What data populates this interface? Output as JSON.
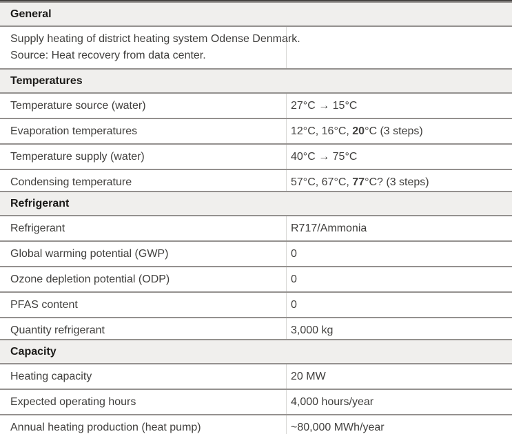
{
  "colors": {
    "background": "#ffffff",
    "top_border": "#454240",
    "border": "#94918f",
    "col_border": "#d9d8d6",
    "header_bg": "#f0efed",
    "header_text": "#1b1a18",
    "text": "#403f3d"
  },
  "table": {
    "sections": [
      {
        "title": "General",
        "rows": [
          {
            "type": "text",
            "lines": [
              "Supply heating of district heating system Odense Denmark.",
              "Source: Heat recovery from data center."
            ]
          }
        ]
      },
      {
        "title": "Temperatures",
        "rows": [
          {
            "type": "pair",
            "label": "Temperature source (water)",
            "value": [
              {
                "text": "27°C → 15°C",
                "bold": false
              }
            ]
          },
          {
            "type": "pair",
            "label": "Evaporation temperatures",
            "value": [
              {
                "text": "12°C, 16°C, ",
                "bold": false
              },
              {
                "text": "20",
                "bold": true
              },
              {
                "text": "°C (3 steps)",
                "bold": false
              }
            ]
          },
          {
            "type": "pair",
            "label": "Temperature supply (water)",
            "value": [
              {
                "text": "40°C → 75°C",
                "bold": false
              }
            ]
          },
          {
            "type": "pair",
            "label": "Condensing temperature",
            "value": [
              {
                "text": "57°C, 67°C, ",
                "bold": false
              },
              {
                "text": "77",
                "bold": true
              },
              {
                "text": "°C? (3 steps)",
                "bold": false
              }
            ]
          }
        ]
      },
      {
        "title": "Refrigerant",
        "rows": [
          {
            "type": "pair",
            "label": "Refrigerant",
            "value": [
              {
                "text": "R717/Ammonia",
                "bold": false
              }
            ]
          },
          {
            "type": "pair",
            "label": "Global warming potential (GWP)",
            "value": [
              {
                "text": "0",
                "bold": false
              }
            ]
          },
          {
            "type": "pair",
            "label": "Ozone depletion potential (ODP)",
            "value": [
              {
                "text": "0",
                "bold": false
              }
            ]
          },
          {
            "type": "pair",
            "label": "PFAS content",
            "value": [
              {
                "text": "0",
                "bold": false
              }
            ]
          },
          {
            "type": "pair",
            "label": "Quantity refrigerant",
            "value": [
              {
                "text": "3,000 kg",
                "bold": false
              }
            ]
          }
        ]
      },
      {
        "title": "Capacity",
        "rows": [
          {
            "type": "pair",
            "label": "Heating capacity",
            "value": [
              {
                "text": "20 MW",
                "bold": false
              }
            ]
          },
          {
            "type": "pair",
            "label": "Expected operating hours",
            "value": [
              {
                "text": "4,000 hours/year",
                "bold": false
              }
            ]
          },
          {
            "type": "pair",
            "label": "Annual heating production (heat pump)",
            "value": [
              {
                "text": "~80,000 MWh/year",
                "bold": false
              }
            ]
          }
        ]
      }
    ]
  }
}
